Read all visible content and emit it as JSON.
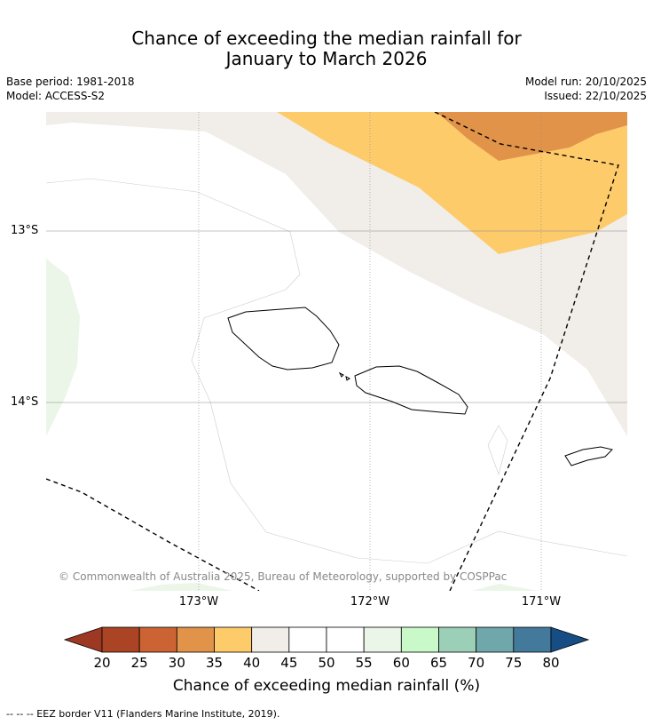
{
  "title": {
    "line1": "Chance of exceeding the median rainfall for",
    "line2": "January to March 2026"
  },
  "meta": {
    "base_period": "Base period: 1981-2018",
    "model": "Model: ACCESS-S2",
    "model_run": "Model run: 20/10/2025",
    "issued": "Issued: 22/10/2025"
  },
  "map": {
    "lat_labels": [
      "13°S",
      "14°S"
    ],
    "lon_labels": [
      "173°W",
      "172°W",
      "171°W"
    ],
    "copyright": "© Commonwealth of Australia 2025, Bureau of Meteorology, supported by COSPPac",
    "category_colors": {
      "30-35": "#e1934a",
      "35-40": "#fecb6b",
      "40-45": "#f1ede8",
      "45-55": "#ffffff",
      "55-60": "#ebf6e8"
    }
  },
  "colorbar": {
    "ticks": [
      "20",
      "25",
      "30",
      "35",
      "40",
      "45",
      "50",
      "55",
      "60",
      "65",
      "70",
      "75",
      "80"
    ],
    "colors": [
      "#aa4425",
      "#cc6332",
      "#e1934a",
      "#fecb6b",
      "#f1ede8",
      "#ffffff",
      "#ffffff",
      "#ebf6e8",
      "#c9f9c9",
      "#9ccfb8",
      "#6fa7aa",
      "#437a9b"
    ],
    "under_color": "#9d3922",
    "over_color": "#164d85",
    "label": "Chance of exceeding median rainfall (%)"
  },
  "footnote": "--  --  -- EEZ border V11 (Flanders Marine Institute, 2019)."
}
